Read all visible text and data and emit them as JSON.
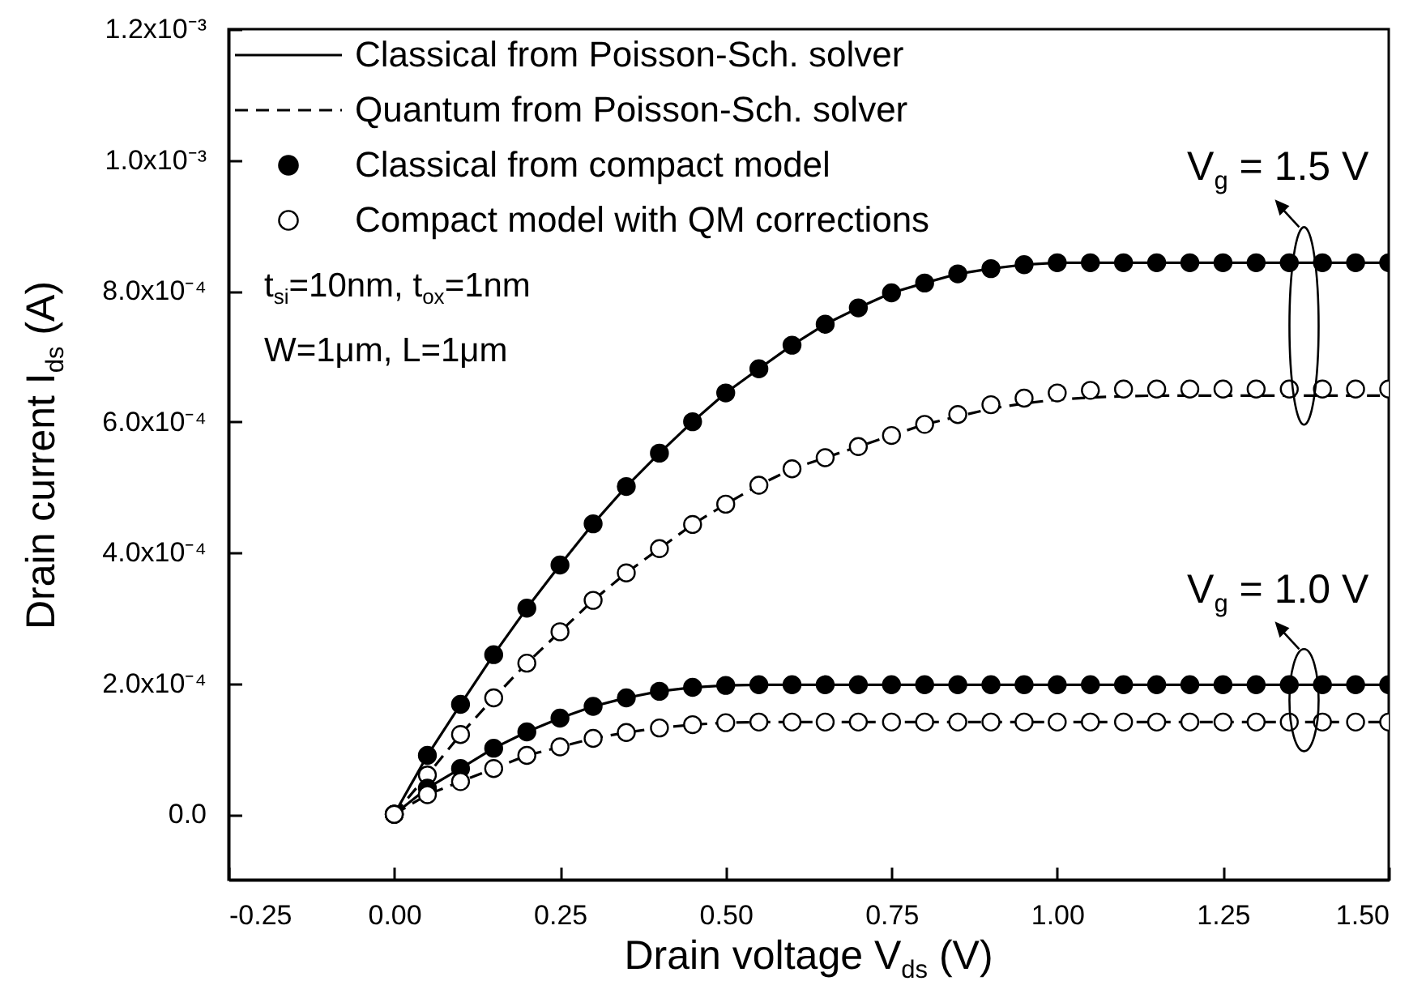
{
  "chart_data": {
    "type": "line",
    "xlabel": "Drain voltage V$_{ds}$ (V)",
    "ylabel": "Drain current I$_{ds}$ (A)",
    "x": [
      0,
      0.05,
      0.1,
      0.15,
      0.2,
      0.25,
      0.3,
      0.35,
      0.4,
      0.45,
      0.5,
      0.55,
      0.6,
      0.65,
      0.7,
      0.75,
      0.8,
      0.85,
      0.9,
      0.95,
      1.0,
      1.05,
      1.1,
      1.15,
      1.2,
      1.25,
      1.3,
      1.35,
      1.4,
      1.45,
      1.5
    ],
    "series": [
      {
        "name": "Classical from Poisson-Sch. solver",
        "line_style": "solid",
        "color": "#000000",
        "values": [
          0,
          9e-05,
          0.000168,
          0.000244,
          0.000315,
          0.000381,
          0.000444,
          0.000501,
          0.000552,
          0.0006,
          0.000644,
          0.000681,
          0.000717,
          0.000749,
          0.000774,
          0.000797,
          0.000812,
          0.000826,
          0.000834,
          0.00084,
          0.000843,
          0.000843,
          0.000843,
          0.000843,
          0.000843,
          0.000843,
          0.000843,
          0.000843,
          0.000843,
          0.000843,
          0.000843
        ]
      },
      {
        "name": "Quantum from Poisson-Sch. solver",
        "line_style": "dashed",
        "color": "#000000",
        "values": [
          0,
          6e-05,
          0.000122,
          0.000178,
          0.000231,
          0.000279,
          0.000327,
          0.000369,
          0.000406,
          0.000443,
          0.000474,
          0.000503,
          0.000528,
          0.000545,
          0.000562,
          0.000579,
          0.000596,
          0.000608,
          0.00062,
          0.000628,
          0.000634,
          0.000637,
          0.000639,
          0.00064,
          0.00064,
          0.00064,
          0.00064,
          0.00064,
          0.00064,
          0.00064,
          0.00064
        ]
      },
      {
        "line_style": "solid",
        "color": "#000000",
        "values": [
          0,
          4e-05,
          7e-05,
          0.000101,
          0.000126,
          0.000147,
          0.000165,
          0.000178,
          0.000188,
          0.000194,
          0.000197,
          0.000198,
          0.000198,
          0.000198,
          0.000198,
          0.000198,
          0.000198,
          0.000198,
          0.000198,
          0.000198,
          0.000198,
          0.000198,
          0.000198,
          0.000198,
          0.000198,
          0.000198,
          0.000198,
          0.000198,
          0.000198,
          0.000198,
          0.000198
        ]
      },
      {
        "line_style": "dashed",
        "color": "#000000",
        "values": [
          0,
          3e-05,
          5e-05,
          7e-05,
          9e-05,
          0.000103,
          0.000116,
          0.000125,
          0.000132,
          0.000137,
          0.00014,
          0.000141,
          0.000141,
          0.000141,
          0.000141,
          0.000141,
          0.000141,
          0.000141,
          0.000141,
          0.000141,
          0.000141,
          0.000141,
          0.000141,
          0.000141,
          0.000141,
          0.000141,
          0.000141,
          0.000141,
          0.000141,
          0.000141,
          0.000141
        ]
      },
      {
        "name": "Classical from compact model",
        "type": "scatter",
        "marker": "circle",
        "color": "#000000",
        "values": [
          0,
          9e-05,
          0.000168,
          0.000244,
          0.000315,
          0.000381,
          0.000444,
          0.000501,
          0.000552,
          0.0006,
          0.000644,
          0.000681,
          0.000717,
          0.000749,
          0.000774,
          0.000797,
          0.000812,
          0.000826,
          0.000834,
          0.00084,
          0.000843,
          0.000843,
          0.000843,
          0.000843,
          0.000843,
          0.000843,
          0.000843,
          0.000843,
          0.000843,
          0.000843,
          0.000843
        ]
      },
      {
        "name": "Compact model with QM corrections",
        "type": "scatter",
        "marker": "circle",
        "color": "#ffffff",
        "values": [
          0,
          6e-05,
          0.000122,
          0.000178,
          0.000231,
          0.000279,
          0.000327,
          0.000369,
          0.000406,
          0.000443,
          0.000474,
          0.000503,
          0.000528,
          0.000545,
          0.000562,
          0.000579,
          0.000596,
          0.000611,
          0.000626,
          0.000636,
          0.000644,
          0.000648,
          0.00065,
          0.00065,
          0.00065,
          0.00065,
          0.00065,
          0.00065,
          0.00065,
          0.00065,
          0.00065
        ]
      },
      {
        "type": "scatter",
        "marker": "circle",
        "color": "#000000",
        "values": [
          0,
          4e-05,
          7e-05,
          0.000101,
          0.000126,
          0.000147,
          0.000165,
          0.000178,
          0.000188,
          0.000194,
          0.000197,
          0.000198,
          0.000198,
          0.000198,
          0.000198,
          0.000198,
          0.000198,
          0.000198,
          0.000198,
          0.000198,
          0.000198,
          0.000198,
          0.000198,
          0.000198,
          0.000198,
          0.000198,
          0.000198,
          0.000198,
          0.000198,
          0.000198,
          0.000198
        ]
      },
      {
        "type": "scatter",
        "marker": "circle",
        "color": "#ffffff",
        "values": [
          0,
          3e-05,
          5e-05,
          7e-05,
          9e-05,
          0.000103,
          0.000116,
          0.000125,
          0.000132,
          0.000137,
          0.00014,
          0.000141,
          0.000141,
          0.000141,
          0.000141,
          0.000141,
          0.000141,
          0.000141,
          0.000141,
          0.000141,
          0.000141,
          0.000141,
          0.000141,
          0.000141,
          0.000141,
          0.000141,
          0.000141,
          0.000141,
          0.000141,
          0.000141,
          0.000141
        ]
      }
    ],
    "xlim": [
      -0.25,
      1.5
    ],
    "xticks": [
      {
        "value": -0.25,
        "label": "-0.25"
      },
      {
        "value": 0,
        "label": "0.00"
      },
      {
        "value": 0.25,
        "label": "0.25"
      },
      {
        "value": 0.5,
        "label": "0.50"
      },
      {
        "value": 0.75,
        "label": "0.75"
      },
      {
        "value": 1,
        "label": "1.00"
      },
      {
        "value": 1.25,
        "label": "1.25"
      },
      {
        "value": 1.5,
        "label": "1.50"
      }
    ],
    "ylim": [
      -0.0001,
      0.0012
    ],
    "yticks": [
      {
        "value": 0,
        "label": "0.0"
      },
      {
        "value": 0.0002,
        "label": "2.0x10⁻⁴"
      },
      {
        "value": 0.0004,
        "label": "4.0x10⁻⁴"
      },
      {
        "value": 0.0006,
        "label": "6.0x10⁻⁴"
      },
      {
        "value": 0.0008,
        "label": "8.0x10⁻⁴"
      },
      {
        "value": 0.001,
        "label": "1.0x10⁻³"
      },
      {
        "value": 0.0012,
        "label": "1.2x10⁻³"
      }
    ],
    "grid": false,
    "legend": "top left",
    "annotations": [
      "t$_{si}$=10nm, t$_{ox}$=1nm",
      "W=1μm, L=1μm",
      "V$_{g}$ = 1.5 V",
      "V$_{g}$ = 1.0 V"
    ]
  }
}
